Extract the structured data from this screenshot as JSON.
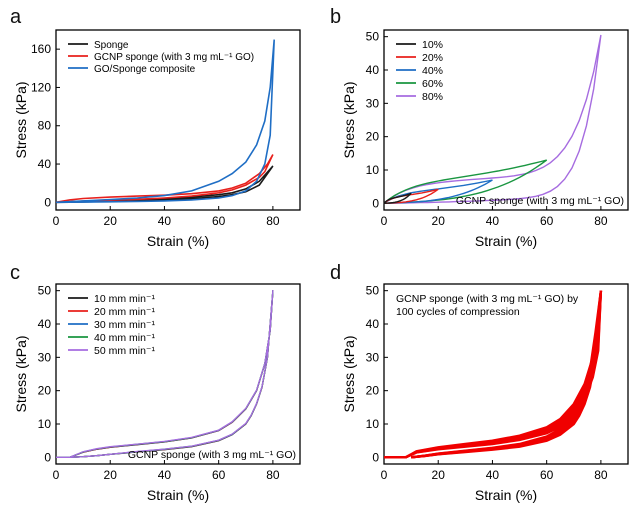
{
  "chart_data": [
    {
      "panel_label": "a",
      "type": "line",
      "xlabel": "Strain (%)",
      "ylabel": "Stress (kPa)",
      "xlim": [
        0,
        90
      ],
      "ylim": [
        -8,
        180
      ],
      "xticks": [
        0,
        20,
        40,
        60,
        80
      ],
      "yticks": [
        0,
        40,
        80,
        120,
        160
      ],
      "legend_position": "top-left",
      "series": [
        {
          "name": "Sponge",
          "color": "#1a1a1a",
          "x": [
            0,
            10,
            20,
            30,
            40,
            50,
            60,
            65,
            70,
            75,
            80,
            75,
            70,
            65,
            60,
            50,
            40,
            30,
            20,
            10,
            5,
            0
          ],
          "y": [
            0,
            1.2,
            2.2,
            3.0,
            4.0,
            5.5,
            8.0,
            10,
            14,
            22,
            38,
            18,
            11,
            8,
            6,
            3.8,
            2.6,
            1.8,
            1.1,
            0.4,
            0.1,
            0
          ]
        },
        {
          "name": "GCNP sponge  (with 3 mg mL⁻¹ GO)",
          "color": "#e8201c",
          "x": [
            0,
            5,
            10,
            20,
            30,
            40,
            50,
            60,
            65,
            70,
            75,
            78,
            80,
            77,
            75,
            70,
            65,
            60,
            50,
            40,
            30,
            20,
            10,
            5,
            0
          ],
          "y": [
            0,
            2.5,
            4.0,
            5.5,
            6.5,
            7.5,
            9.0,
            12,
            15,
            20,
            30,
            40,
            50,
            32,
            26,
            18,
            13,
            10,
            6.5,
            4.5,
            3.2,
            2.2,
            1.2,
            0.5,
            0
          ]
        },
        {
          "name": "GO/Sponge composite",
          "color": "#1f6ec5",
          "x": [
            0,
            10,
            20,
            30,
            40,
            50,
            60,
            65,
            70,
            74,
            77,
            79,
            80.5,
            79,
            77,
            74,
            70,
            65,
            60,
            50,
            40,
            30,
            20,
            10,
            0
          ],
          "y": [
            0,
            1.5,
            3.0,
            4.5,
            7.0,
            12,
            22,
            30,
            42,
            60,
            85,
            120,
            170,
            70,
            40,
            22,
            12,
            7,
            4.5,
            2.5,
            1.5,
            1.0,
            0.6,
            0.2,
            0
          ]
        }
      ]
    },
    {
      "panel_label": "b",
      "type": "line",
      "xlabel": "Strain (%)",
      "ylabel": "Stress (kPa)",
      "xlim": [
        0,
        90
      ],
      "ylim": [
        -2,
        52
      ],
      "xticks": [
        0,
        20,
        40,
        60,
        80
      ],
      "yticks": [
        0,
        10,
        20,
        30,
        40,
        50
      ],
      "legend_position": "top-left",
      "annotation": "GCNP sponge (with 3 mg mL⁻¹ GO)",
      "series": [
        {
          "name": "10%",
          "color": "#1a1a1a",
          "max_strain": 10,
          "max_stress": 3.0
        },
        {
          "name": "20%",
          "color": "#e8201c",
          "max_strain": 20,
          "max_stress": 4.2
        },
        {
          "name": "40%",
          "color": "#1f6ec5",
          "max_strain": 40,
          "max_stress": 7.0
        },
        {
          "name": "60%",
          "color": "#1a9641",
          "max_strain": 60,
          "max_stress": 13.0
        },
        {
          "name": "80%",
          "color": "#a66ce0",
          "max_strain": 80,
          "max_stress": 50.5
        }
      ]
    },
    {
      "panel_label": "c",
      "type": "line",
      "xlabel": "Strain (%)",
      "ylabel": "Stress (kPa)",
      "xlim": [
        0,
        90
      ],
      "ylim": [
        -2,
        52
      ],
      "xticks": [
        0,
        20,
        40,
        60,
        80
      ],
      "yticks": [
        0,
        10,
        20,
        30,
        40,
        50
      ],
      "legend_position": "top-left",
      "annotation": "GCNP sponge (with 3 mg mL⁻¹ GO)",
      "series": [
        {
          "name": "10 mm min⁻¹",
          "color": "#1a1a1a"
        },
        {
          "name": "20 mm min⁻¹",
          "color": "#e8201c"
        },
        {
          "name": "30 mm min⁻¹",
          "color": "#1f6ec5"
        },
        {
          "name": "40 mm min⁻¹",
          "color": "#1a9641"
        },
        {
          "name": "50 mm min⁻¹",
          "color": "#a66ce0"
        }
      ],
      "loading": {
        "x": [
          0,
          5,
          10,
          15,
          20,
          30,
          40,
          50,
          60,
          65,
          70,
          74,
          77,
          79,
          80
        ],
        "y": [
          0,
          0,
          1.5,
          2.4,
          3.0,
          3.8,
          4.6,
          5.8,
          8.0,
          10.5,
          14.5,
          20,
          28,
          38,
          50
        ]
      },
      "unloading": {
        "x": [
          80,
          78,
          76,
          74,
          72,
          70,
          65,
          60,
          50,
          40,
          30,
          20,
          15,
          10,
          5
        ],
        "y": [
          50,
          30,
          21,
          16,
          12.5,
          10,
          6.8,
          5.0,
          3.2,
          2.3,
          1.6,
          0.9,
          0.5,
          0.2,
          0
        ]
      }
    },
    {
      "panel_label": "d",
      "type": "line",
      "xlabel": "Strain (%)",
      "ylabel": "Stress (kPa)",
      "xlim": [
        0,
        90
      ],
      "ylim": [
        -2,
        52
      ],
      "xticks": [
        0,
        20,
        40,
        60,
        80
      ],
      "yticks": [
        0,
        10,
        20,
        30,
        40,
        50
      ],
      "annotation": [
        "GCNP sponge (with 3 mg mL⁻¹ GO) by",
        "100 cycles of compression"
      ],
      "series": [
        {
          "name": "",
          "color": "#f00000"
        }
      ],
      "loading": {
        "x": [
          0,
          8,
          12,
          20,
          30,
          40,
          50,
          60,
          65,
          70,
          74,
          77,
          79,
          80
        ],
        "y": [
          0,
          0,
          1.8,
          3.0,
          4.0,
          5.0,
          6.5,
          9.0,
          11.5,
          16,
          22,
          30,
          40,
          50
        ]
      },
      "unloading": {
        "x": [
          80,
          78,
          76,
          74,
          72,
          70,
          65,
          60,
          50,
          40,
          30,
          20,
          15,
          10
        ],
        "y": [
          50,
          30,
          21,
          16,
          12.5,
          10,
          6.8,
          5.0,
          3.2,
          2.3,
          1.6,
          0.9,
          0.4,
          0
        ]
      }
    }
  ]
}
